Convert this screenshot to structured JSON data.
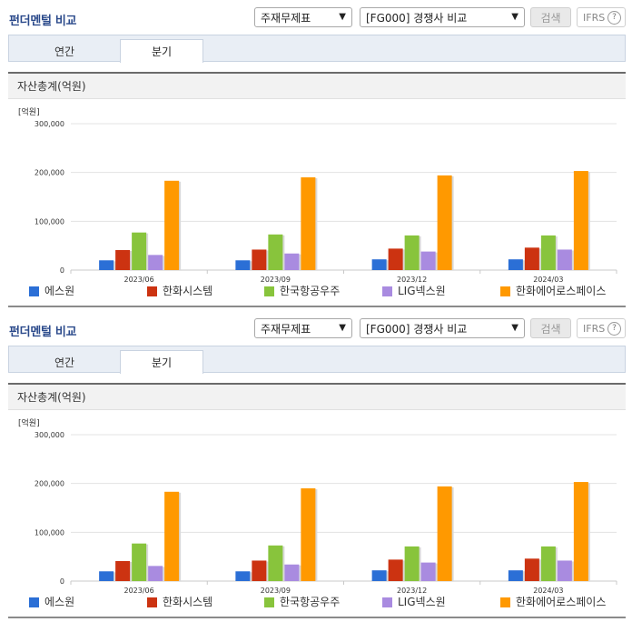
{
  "header": {
    "title": "펀더멘털 비교",
    "select_item": "주재무제표",
    "select_group": "[FG000] 경쟁사 비교",
    "search_label": "검색",
    "ifrs_label": "IFRS",
    "help_glyph": "?"
  },
  "tabs": [
    {
      "label": "연간",
      "active": false
    },
    {
      "label": "분기",
      "active": true
    }
  ],
  "section_title": "자산총계(억원)",
  "colors": {
    "에스원": "#2b6fd6",
    "한화시스템": "#cc3311",
    "한국항공우주": "#88c43c",
    "LIG넥스원": "#a98be0",
    "한화에어로스페이스": "#ff9900"
  },
  "chart_data": [
    {
      "type": "bar",
      "unit_label": "[억원]",
      "categories": [
        "2023/06",
        "2023/09",
        "2023/12",
        "2024/03"
      ],
      "yticks": [
        0,
        100000,
        200000,
        300000
      ],
      "ytick_labels": [
        "0",
        "100,000",
        "200,000",
        "300,000"
      ],
      "ylim": [
        0,
        300000
      ],
      "grid": true,
      "legend": "bottom",
      "series": [
        {
          "name": "에스원",
          "values": [
            20000,
            20000,
            22000,
            22000
          ]
        },
        {
          "name": "한화시스템",
          "values": [
            41000,
            42000,
            44000,
            46000
          ]
        },
        {
          "name": "한국항공우주",
          "values": [
            77000,
            73000,
            71000,
            71000
          ]
        },
        {
          "name": "LIG넥스원",
          "values": [
            31000,
            34000,
            38000,
            42000
          ]
        },
        {
          "name": "한화에어로스페이스",
          "values": [
            183000,
            190000,
            194000,
            203000
          ]
        }
      ]
    },
    {
      "type": "bar",
      "unit_label": "[억원]",
      "categories": [
        "2023/06",
        "2023/09",
        "2023/12",
        "2024/03"
      ],
      "yticks": [
        0,
        100000,
        200000,
        300000
      ],
      "ytick_labels": [
        "0",
        "100,000",
        "200,000",
        "300,000"
      ],
      "ylim": [
        0,
        300000
      ],
      "grid": true,
      "legend": "bottom",
      "series": [
        {
          "name": "에스원",
          "values": [
            20000,
            20000,
            22000,
            22000
          ]
        },
        {
          "name": "한화시스템",
          "values": [
            41000,
            42000,
            44000,
            46000
          ]
        },
        {
          "name": "한국항공우주",
          "values": [
            77000,
            73000,
            71000,
            71000
          ]
        },
        {
          "name": "LIG넥스원",
          "values": [
            31000,
            34000,
            38000,
            42000
          ]
        },
        {
          "name": "한화에어로스페이스",
          "values": [
            183000,
            190000,
            194000,
            203000
          ]
        }
      ]
    }
  ]
}
